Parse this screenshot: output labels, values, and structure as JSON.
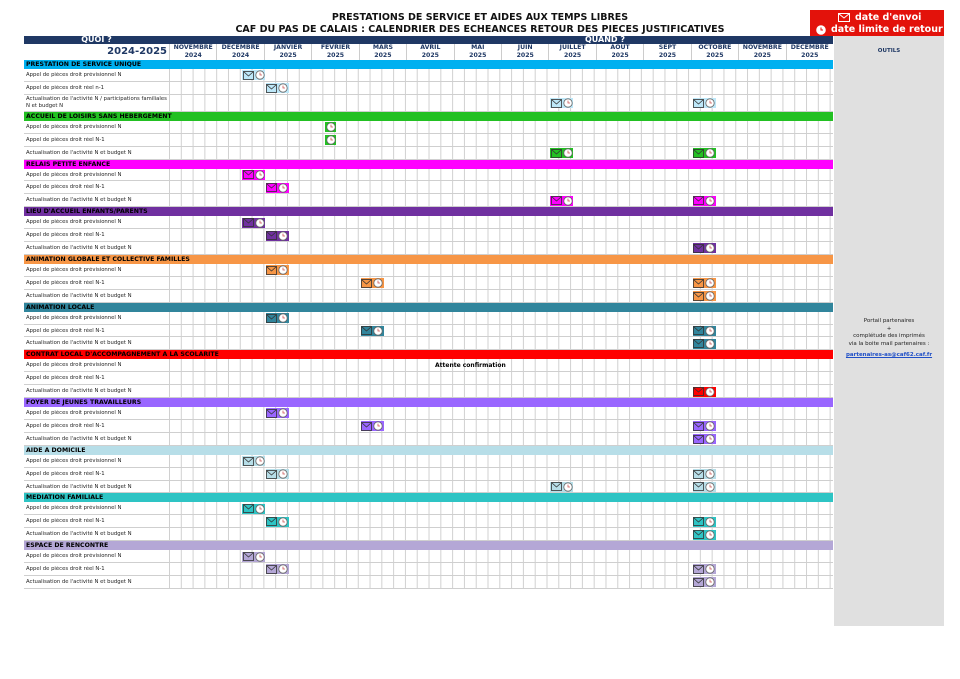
{
  "header": {
    "title_line1": "PRESTATIONS DE SERVICE ET AIDES AUX TEMPS LIBRES",
    "title_line2": "CAF DU PAS DE CALAIS : CALENDRIER DES ECHEANCES RETOUR DES PIECES JUSTIFICATIVES",
    "quoi": "QUOI ?",
    "quand": "QUAND ?",
    "periode": "2024-2025"
  },
  "legend": {
    "envoi": "date d'envoi",
    "retour": "date limite de retour",
    "envoi_icon": "envelope-icon",
    "retour_icon": "clock-icon"
  },
  "months": [
    {
      "name": "NOVEMBRE",
      "year": "2024"
    },
    {
      "name": "DECEMBRE",
      "year": "2024"
    },
    {
      "name": "JANVIER",
      "year": "2025"
    },
    {
      "name": "FEVRIER",
      "year": "2025"
    },
    {
      "name": "MARS",
      "year": "2025"
    },
    {
      "name": "AVRIL",
      "year": "2025"
    },
    {
      "name": "MAI",
      "year": "2025"
    },
    {
      "name": "JUIN",
      "year": "2025"
    },
    {
      "name": "JUILLET",
      "year": "2025"
    },
    {
      "name": "AOUT",
      "year": "2025"
    },
    {
      "name": "SEPT",
      "year": "2025"
    },
    {
      "name": "OCTOBRE",
      "year": "2025"
    },
    {
      "name": "NOVEMBRE",
      "year": "2025"
    },
    {
      "name": "DECEMBRE",
      "year": "2025"
    }
  ],
  "outils": {
    "label": "OUTILS",
    "line1": "Portail partenaires",
    "line2": "+",
    "line3": "complétude des imprimés",
    "line4": "via la boite mail partenaires :",
    "email": "partenaires-as@caf62.caf.fr"
  },
  "sections": [
    {
      "title": "PRESTATION DE SERVICE UNIQUE",
      "color": "#00b0f0",
      "light": "#bde7f8",
      "dark": "#00b0f0",
      "rows": [
        {
          "label": "Appel de pièces droit prévisionnel N",
          "marks": [
            {
              "month": 1,
              "half": 1
            }
          ]
        },
        {
          "label": "Appel de pièces droit réel n-1",
          "marks": [
            {
              "month": 2,
              "half": 0
            }
          ]
        },
        {
          "label": "Actualisation de l'activité N / participations familiales N et budget N",
          "marks": [
            {
              "month": 8,
              "half": 0
            },
            {
              "month": 11,
              "half": 0
            }
          ]
        }
      ]
    },
    {
      "title": "ACCUEIL DE LOISIRS SANS HEBERGEMENT",
      "color": "#22c022",
      "light": "#22c022",
      "dark": "#22c022",
      "rows": [
        {
          "label": "Appel de pièces droit prévisionnel N",
          "marks": [
            {
              "month": 3,
              "half": 0,
              "clockOnly": true
            }
          ]
        },
        {
          "label": "Appel de pièces droit réel N-1",
          "marks": [
            {
              "month": 3,
              "half": 0,
              "clockOnly": true
            }
          ]
        },
        {
          "label": "Actualisation de l'activité N et budget N",
          "marks": [
            {
              "month": 8,
              "half": 0
            },
            {
              "month": 11,
              "half": 0
            }
          ]
        }
      ]
    },
    {
      "title": "RELAIS PETITE ENFANCE",
      "color": "#ff00ff",
      "light": "#ff00ff",
      "dark": "#ff00ff",
      "rows": [
        {
          "label": "Appel de pièces droit prévisionnel N",
          "marks": [
            {
              "month": 1,
              "half": 1
            }
          ]
        },
        {
          "label": "Appel de pièces droit réel N-1",
          "marks": [
            {
              "month": 2,
              "half": 0
            }
          ]
        },
        {
          "label": "Actualisation de l'activité N et budget N",
          "marks": [
            {
              "month": 8,
              "half": 0
            },
            {
              "month": 11,
              "half": 0
            }
          ]
        }
      ]
    },
    {
      "title": "LIEU D'ACCUEIL ENFANTS/PARENTS",
      "color": "#7030a0",
      "light": "#7030a0",
      "dark": "#7030a0",
      "rows": [
        {
          "label": "Appel de pièces droit prévisionnel N",
          "marks": [
            {
              "month": 1,
              "half": 1
            }
          ]
        },
        {
          "label": "Appel de pièces droit réel N-1",
          "marks": [
            {
              "month": 2,
              "half": 0
            }
          ]
        },
        {
          "label": "Actualisation de l'activité N et budget N",
          "marks": [
            {
              "month": 11,
              "half": 0
            },
            {
              "month": 11,
              "half": 0,
              "dup": true
            }
          ]
        }
      ]
    },
    {
      "title": "ANIMATION GLOBALE ET COLLECTIVE FAMILLES",
      "color": "#f79646",
      "light": "#f79646",
      "dark": "#f79646",
      "rows": [
        {
          "label": "Appel de pièces droit prévisionnel N",
          "marks": [
            {
              "month": 2,
              "half": 0
            }
          ]
        },
        {
          "label": "Appel de pièces droit réel N-1",
          "marks": [
            {
              "month": 4,
              "half": 0
            },
            {
              "month": 11,
              "half": 0
            }
          ]
        },
        {
          "label": "Actualisation de l'activité N et budget N",
          "marks": [
            {
              "month": 11,
              "half": 0
            }
          ]
        }
      ]
    },
    {
      "title": "ANIMATION LOCALE",
      "color": "#31859c",
      "light": "#31859c",
      "dark": "#31859c",
      "rows": [
        {
          "label": "Appel de pièces droit prévisionnel N",
          "marks": [
            {
              "month": 2,
              "half": 0
            }
          ]
        },
        {
          "label": "Appel de pièces droit réel N-1",
          "marks": [
            {
              "month": 4,
              "half": 0
            },
            {
              "month": 11,
              "half": 0
            }
          ]
        },
        {
          "label": "Actualisation de l'activité N et budget N",
          "marks": [
            {
              "month": 11,
              "half": 0
            }
          ]
        }
      ]
    },
    {
      "title": "CONTRAT LOCAL D'ACCOMPAGNEMENT A LA SCOLARITE",
      "color": "#ff0000",
      "light": "#ff0000",
      "dark": "#ff0000",
      "note": "Attente confirmation",
      "rows": [
        {
          "label": "Appel de pièces droit prévisionnel N",
          "marks": []
        },
        {
          "label": "Appel de pièces droit réel N-1",
          "marks": []
        },
        {
          "label": "Actualisation de l'activité N et budget N",
          "marks": [
            {
              "month": 11,
              "half": 0
            }
          ]
        }
      ]
    },
    {
      "title": "FOYER DE JEUNES TRAVAILLEURS",
      "color": "#9966ff",
      "light": "#9966ff",
      "dark": "#9966ff",
      "rows": [
        {
          "label": "Appel de pièces droit prévisionnel N",
          "marks": [
            {
              "month": 2,
              "half": 0
            }
          ]
        },
        {
          "label": "Appel de pièces droit réel N-1",
          "marks": [
            {
              "month": 4,
              "half": 0
            },
            {
              "month": 11,
              "half": 0
            }
          ]
        },
        {
          "label": "Actualisation de l'activité N et budget N",
          "marks": [
            {
              "month": 11,
              "half": 0
            }
          ]
        }
      ]
    },
    {
      "title": "AIDE A DOMICILE",
      "color": "#b7dee8",
      "light": "#b7dee8",
      "dark": "#b7dee8",
      "rows": [
        {
          "label": "Appel de pièces droit prévisionnel N",
          "marks": [
            {
              "month": 1,
              "half": 1
            }
          ]
        },
        {
          "label": "Appel de pièces droit réel N-1",
          "marks": [
            {
              "month": 2,
              "half": 0
            },
            {
              "month": 11,
              "half": 0
            }
          ]
        },
        {
          "label": "Actualisation de l'activité N et budget N",
          "marks": [
            {
              "month": 8,
              "half": 0
            },
            {
              "month": 11,
              "half": 0
            }
          ]
        }
      ]
    },
    {
      "title": "MEDIATION FAMILIALE",
      "color": "#2ec4c4",
      "light": "#2ec4c4",
      "dark": "#2ec4c4",
      "rows": [
        {
          "label": "Appel de pièces droit prévisionnel N",
          "marks": [
            {
              "month": 1,
              "half": 1
            }
          ]
        },
        {
          "label": "Appel de pièces droit réel N-1",
          "marks": [
            {
              "month": 2,
              "half": 0
            },
            {
              "month": 11,
              "half": 0
            }
          ]
        },
        {
          "label": "Actualisation de l'activité N et budget N",
          "marks": [
            {
              "month": 11,
              "half": 0
            }
          ]
        }
      ]
    },
    {
      "title": "ESPACE DE RENCONTRE",
      "color": "#b4a7d6",
      "light": "#b4a7d6",
      "dark": "#b4a7d6",
      "rows": [
        {
          "label": "Appel de pièces droit prévisionnel N",
          "marks": [
            {
              "month": 1,
              "half": 1
            }
          ]
        },
        {
          "label": "Appel de pièces droit réel N-1",
          "marks": [
            {
              "month": 2,
              "half": 0
            },
            {
              "month": 11,
              "half": 0
            }
          ]
        },
        {
          "label": "Actualisation de l'activité N et budget N",
          "marks": [
            {
              "month": 11,
              "half": 0
            }
          ]
        }
      ]
    }
  ]
}
